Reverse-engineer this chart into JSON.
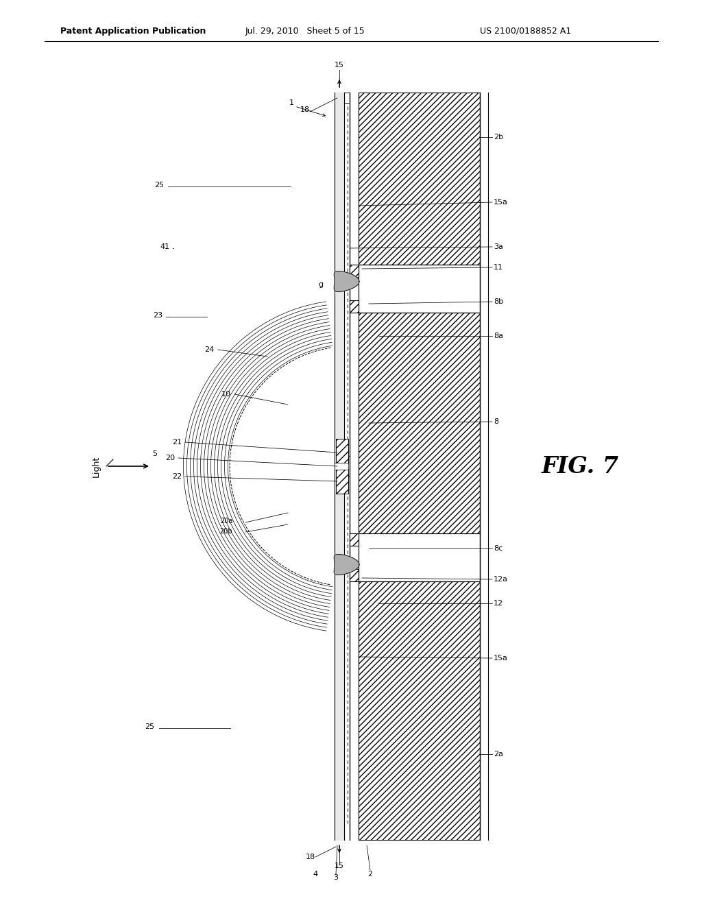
{
  "bg_color": "#ffffff",
  "line_color": "#000000",
  "header_left": "Patent Application Publication",
  "header_mid": "Jul. 29, 2010   Sheet 5 of 15",
  "header_right": "US 2100/0188852 A1",
  "fig_label": "FIG. 7",
  "light_label": "Light"
}
